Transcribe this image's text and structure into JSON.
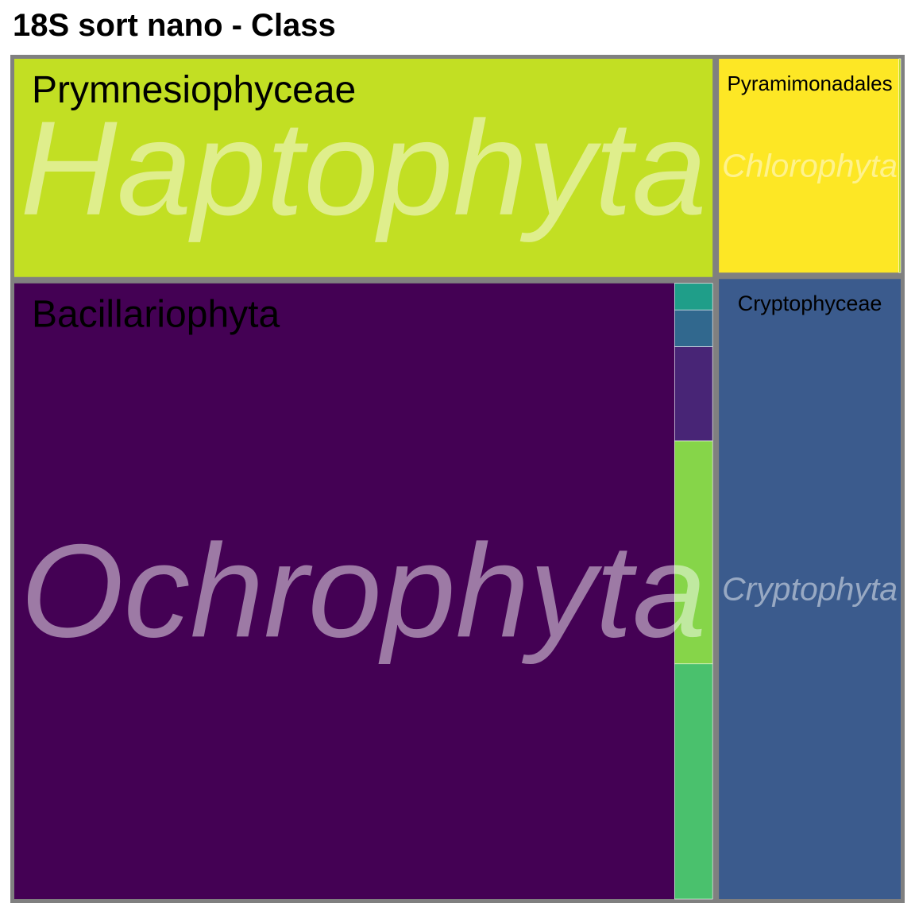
{
  "chart_data": {
    "type": "treemap",
    "title": "18S sort nano - Class",
    "groups": [
      {
        "name": "Ochrophyta",
        "children": [
          {
            "name": "Bacillariophyta",
            "value": 52.3,
            "color": "#440154"
          },
          {
            "name": "",
            "value": 0.13,
            "color": "#1f9e89"
          },
          {
            "name": "",
            "value": 0.18,
            "color": "#31688e"
          },
          {
            "name": "",
            "value": 0.46,
            "color": "#482576"
          },
          {
            "name": "",
            "value": 1.09,
            "color": "#86d549"
          },
          {
            "name": "",
            "value": 1.15,
            "color": "#4ac16d"
          }
        ]
      },
      {
        "name": "Haptophyta",
        "children": [
          {
            "name": "Prymnesiophyceae",
            "value": 19.6,
            "color": "#c2df23"
          }
        ]
      },
      {
        "name": "Cryptophyta",
        "children": [
          {
            "name": "Cryptophyceae",
            "value": 14.5,
            "color": "#3b5b8d"
          }
        ]
      },
      {
        "name": "Chlorophyta",
        "children": [
          {
            "name": "Pyramimonadales",
            "value": 4.95,
            "color": "#fde725"
          },
          {
            "name": "",
            "value": 0.05,
            "color": "#bddf26"
          }
        ]
      }
    ],
    "border_color": "#808080",
    "group_label_color": "#ffffff"
  }
}
